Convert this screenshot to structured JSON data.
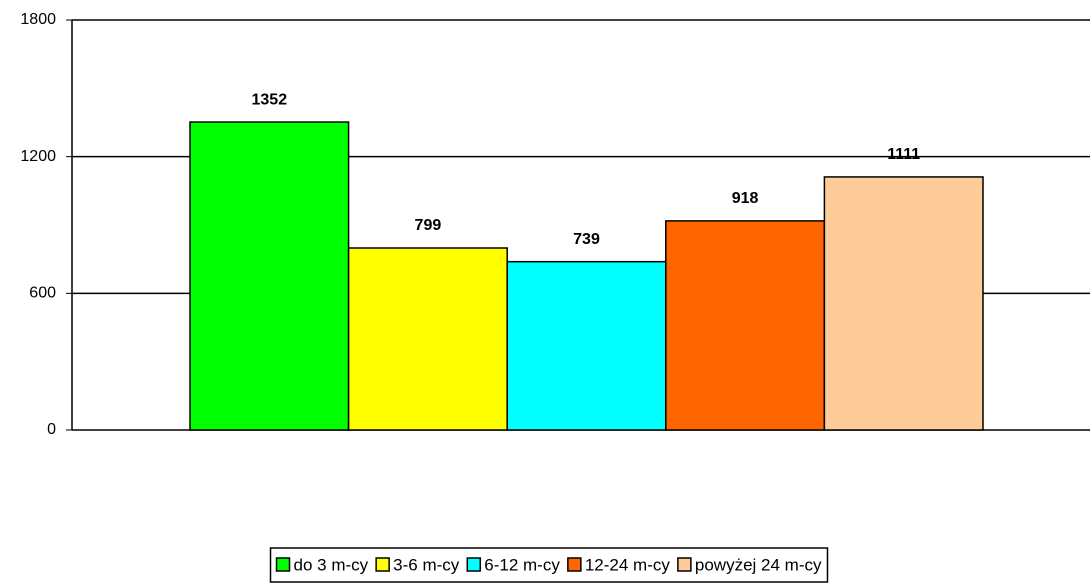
{
  "chart_data": {
    "type": "bar",
    "series": [
      {
        "name": "do 3 m-cy",
        "color": "#00ff00",
        "values": [
          1352
        ]
      },
      {
        "name": "3-6 m-cy",
        "color": "#ffff00",
        "values": [
          799
        ]
      },
      {
        "name": "6-12 m-cy",
        "color": "#00ffff",
        "values": [
          739
        ]
      },
      {
        "name": "12-24 m-cy",
        "color": "#ff6600",
        "values": [
          918
        ]
      },
      {
        "name": "powyżej 24 m-cy",
        "color": "#ffcc99",
        "values": [
          1111
        ]
      }
    ],
    "ylim": [
      0,
      1800
    ],
    "yticks": [
      0,
      600,
      1200,
      1800
    ],
    "grid": true,
    "legend": "bottom"
  }
}
